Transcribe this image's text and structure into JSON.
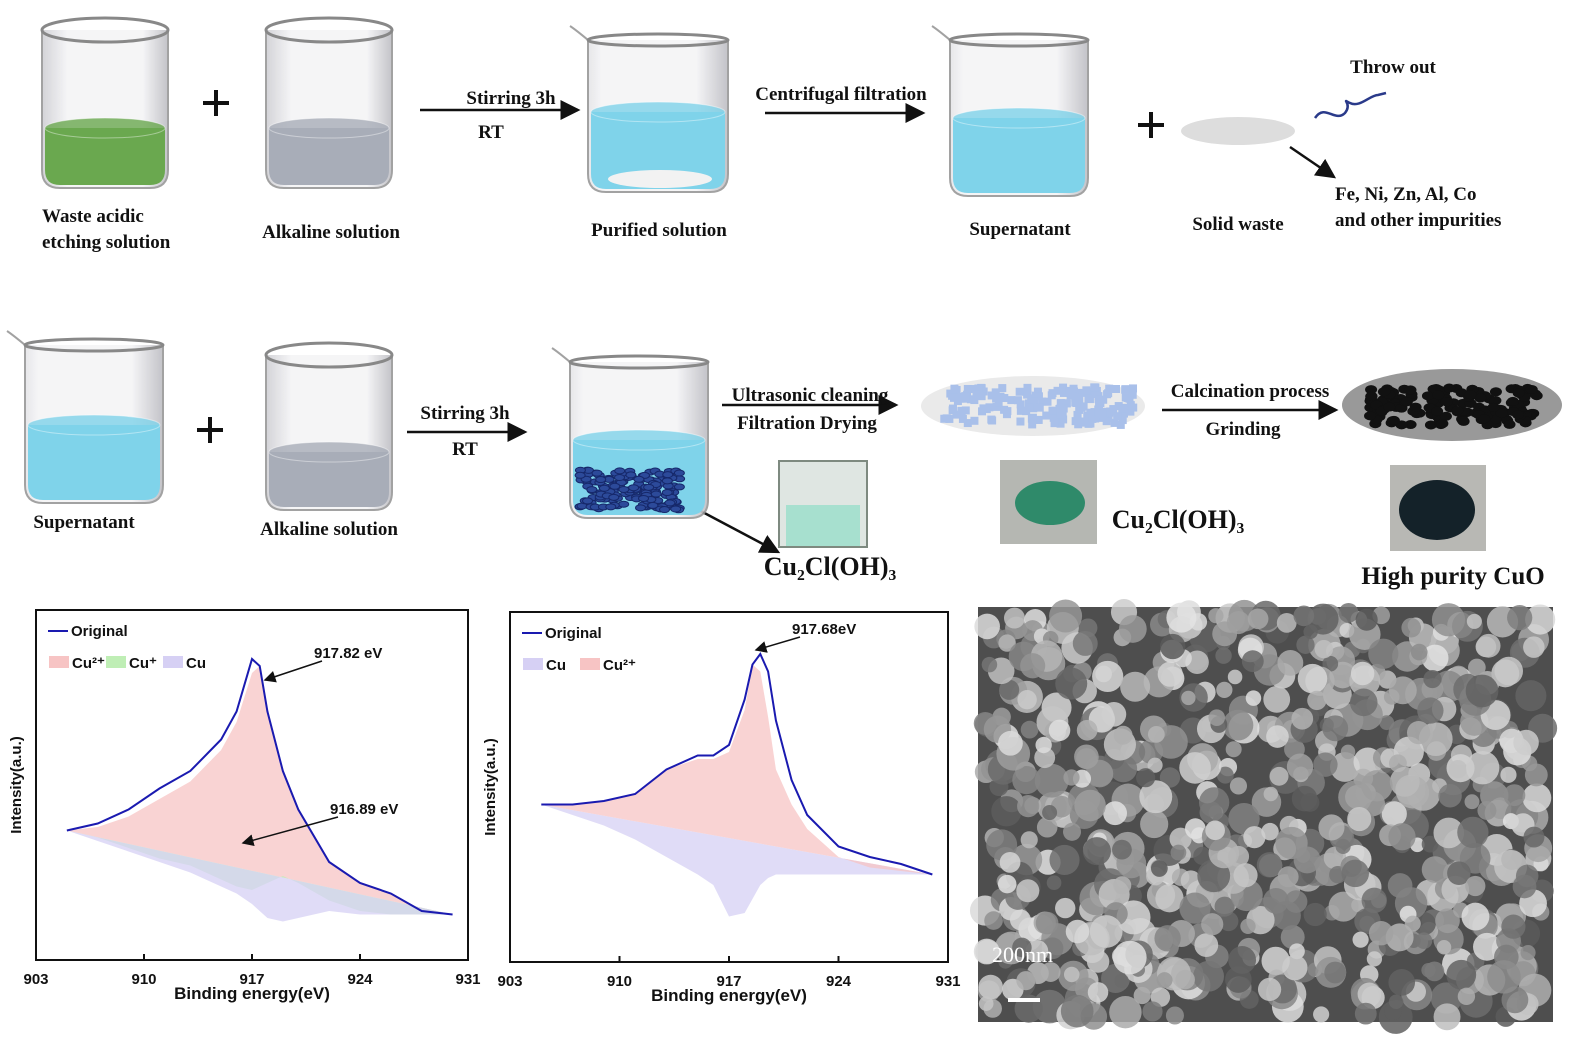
{
  "process": {
    "row1": {
      "beaker1_label": [
        "Waste acidic",
        "etching solution"
      ],
      "beaker2_label": "Alkaline solution",
      "step1": [
        "Stirring 3h",
        "RT"
      ],
      "beaker3_label": "Purified solution",
      "step2": "Centrifugal filtration",
      "beaker4_label": "Supernatant",
      "solid_label": "Solid waste",
      "throw": "Throw out",
      "impurities": [
        "Fe, Ni, Zn, Al, Co",
        "and other impurities"
      ]
    },
    "row2": {
      "beaker1_label": "Supernatant",
      "beaker2_label": "Alkaline solution",
      "step1": [
        "Stirring 3h",
        "RT"
      ],
      "step2": [
        "Ultrasonic cleaning",
        "Filtration  Drying"
      ],
      "product1": "Cu₂Cl(OH)₃",
      "product2": "Cu₂Cl(OH)₃",
      "step3": [
        "Calcination process",
        "Grinding"
      ],
      "product3": "High purity CuO"
    }
  },
  "sem": {
    "scale_bar": "200nm"
  },
  "chart_data": [
    {
      "type": "line",
      "x_label": "Binding energy(eV)",
      "y_label": "Intensity(a.u.)",
      "xlim": [
        903,
        931
      ],
      "xticks": [
        903,
        910,
        917,
        924,
        931
      ],
      "ylim": [
        0,
        100
      ],
      "x": [
        905,
        907,
        909,
        911,
        913,
        915,
        916,
        917,
        917.5,
        918,
        919,
        920,
        922,
        924,
        926,
        928,
        930
      ],
      "series": [
        {
          "name": "Original",
          "color": "#1a1ab0",
          "values": [
            37,
            39,
            43,
            49,
            54,
            63,
            71,
            86,
            84,
            71,
            54,
            43,
            28,
            22,
            19,
            14,
            13
          ]
        },
        {
          "name": "Cu²⁺",
          "color": "#f7c4c4",
          "fill": true,
          "values": [
            37,
            38,
            41,
            46,
            51,
            60,
            68,
            82,
            84,
            71,
            54,
            43,
            28,
            22,
            19,
            14,
            13
          ]
        },
        {
          "name": "Cu⁺",
          "color": "#bfeeb5",
          "fill": true,
          "values": [
            37,
            35,
            32,
            29,
            27,
            23,
            21,
            20,
            21,
            22,
            24,
            22,
            17,
            14,
            13,
            13,
            13
          ]
        },
        {
          "name": "Cu",
          "color": "#d6d0f4",
          "fill": true,
          "values": [
            37,
            34,
            31,
            28,
            25,
            21,
            19,
            16,
            14,
            12,
            11,
            12,
            14,
            13,
            13,
            13,
            13
          ]
        }
      ],
      "annotations": [
        "917.82 eV",
        "916.89 eV"
      ]
    },
    {
      "type": "line",
      "x_label": "Binding energy(eV)",
      "y_label": "Intensity(a.u.)",
      "xlim": [
        903,
        931
      ],
      "xticks": [
        903,
        910,
        917,
        924,
        931
      ],
      "ylim": [
        0,
        100
      ],
      "x": [
        905,
        907,
        909,
        911,
        913,
        915,
        916,
        917,
        918,
        918.5,
        919,
        919.5,
        920,
        921,
        922,
        924,
        926,
        928,
        930
      ],
      "series": [
        {
          "name": "Original",
          "color": "#1a1ab0",
          "values": [
            45,
            45,
            46,
            48,
            55,
            59,
            59,
            62,
            75,
            85,
            88,
            83,
            69,
            52,
            42,
            33,
            30,
            28,
            25
          ]
        },
        {
          "name": "Cu",
          "color": "#d6d0f4",
          "fill": true,
          "values": [
            45,
            42,
            39,
            35,
            30,
            25,
            22,
            13,
            14,
            18,
            22,
            24,
            25,
            25,
            25,
            25,
            25,
            25,
            25
          ]
        },
        {
          "name": "Cu²⁺",
          "color": "#f7c4c4",
          "fill": true,
          "values": [
            45,
            45,
            46,
            48,
            55,
            58,
            58,
            60,
            72,
            85,
            83,
            70,
            55,
            45,
            38,
            30,
            27,
            26,
            25
          ]
        }
      ],
      "annotations": [
        "917.68eV"
      ]
    }
  ]
}
